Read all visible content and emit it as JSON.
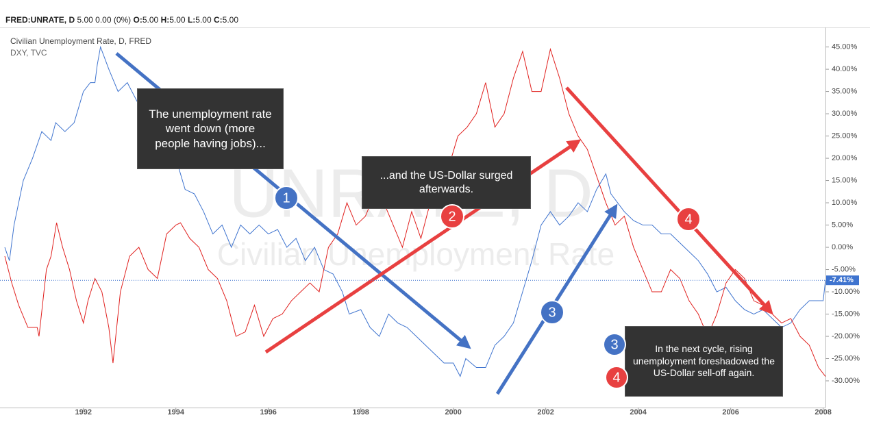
{
  "header": {
    "symbol": "FRED:UNRATE, D",
    "change": "5.00 0.00 (0%)",
    "ohlc": [
      {
        "key": "O:",
        "value": "5.00"
      },
      {
        "key": "H:",
        "value": "5.00"
      },
      {
        "key": "L:",
        "value": "5.00"
      },
      {
        "key": "C:",
        "value": "5.00"
      }
    ]
  },
  "chart_data": {
    "type": "line",
    "watermark": [
      "UNRATE, D",
      "Civilian Unemployment Rate"
    ],
    "xlim": [
      1990.3,
      2008.05
    ],
    "ylim": [
      -36,
      49.4
    ],
    "xticks": [
      1992,
      1994,
      1996,
      1998,
      2000,
      2002,
      2004,
      2006,
      2008
    ],
    "yticks": [
      {
        "value": 45,
        "label": "45.00%"
      },
      {
        "value": 40,
        "label": "40.00%"
      },
      {
        "value": 35,
        "label": "35.00%"
      },
      {
        "value": 30,
        "label": "30.00%"
      },
      {
        "value": 25,
        "label": "25.00%"
      },
      {
        "value": 20,
        "label": "20.00%"
      },
      {
        "value": 15,
        "label": "15.00%"
      },
      {
        "value": 10,
        "label": "10.00%"
      },
      {
        "value": 5,
        "label": "5.00%"
      },
      {
        "value": 0,
        "label": "0.00%"
      },
      {
        "value": -5,
        "label": "-5.00%"
      },
      {
        "value": -10,
        "label": "-10.00%"
      },
      {
        "value": -15,
        "label": "-15.00%"
      },
      {
        "value": -20,
        "label": "-20.00%"
      },
      {
        "value": -25,
        "label": "-25.00%"
      },
      {
        "value": -30,
        "label": "-30.00%"
      }
    ],
    "last_value": {
      "value": -7.41,
      "label": "-7.41%"
    },
    "series": [
      {
        "name": "Civilian Unemployment Rate, D, FRED",
        "color": "#3f74cf",
        "x": [
          1990.3,
          1990.4,
          1990.5,
          1990.7,
          1990.9,
          1991.1,
          1991.3,
          1991.4,
          1991.6,
          1991.8,
          1992.0,
          1992.15,
          1992.25,
          1992.3,
          1992.37,
          1992.55,
          1992.75,
          1992.95,
          1993.2,
          1993.4,
          1993.6,
          1993.8,
          1994.0,
          1994.2,
          1994.4,
          1994.6,
          1994.8,
          1995.0,
          1995.2,
          1995.4,
          1995.6,
          1995.8,
          1996.0,
          1996.2,
          1996.4,
          1996.6,
          1996.8,
          1997.0,
          1997.2,
          1997.4,
          1997.6,
          1997.75,
          1998.0,
          1998.2,
          1998.4,
          1998.6,
          1998.8,
          1999.0,
          1999.2,
          1999.4,
          1999.6,
          1999.8,
          2000.0,
          2000.15,
          2000.27,
          2000.5,
          2000.7,
          2000.9,
          2001.1,
          2001.3,
          2001.5,
          2001.7,
          2001.9,
          2002.1,
          2002.3,
          2002.5,
          2002.7,
          2002.9,
          2003.1,
          2003.3,
          2003.41,
          2003.7,
          2003.9,
          2004.1,
          2004.3,
          2004.5,
          2004.7,
          2004.9,
          2005.1,
          2005.3,
          2005.5,
          2005.7,
          2005.9,
          2006.1,
          2006.3,
          2006.5,
          2006.7,
          2006.9,
          2007.1,
          2007.3,
          2007.5,
          2007.7,
          2008.0,
          2008.05
        ],
        "values": [
          0,
          -3,
          5,
          15,
          20,
          26,
          24,
          28,
          26,
          28,
          35,
          37,
          37,
          41,
          45,
          40,
          35,
          37,
          32,
          30,
          25,
          22,
          20,
          13,
          12,
          8,
          3,
          5,
          0,
          5,
          3,
          5,
          3,
          4,
          0,
          2,
          -3,
          0,
          -5,
          -6,
          -10,
          -15,
          -14,
          -18,
          -20,
          -15,
          -17,
          -18,
          -20,
          -22,
          -24,
          -26,
          -26,
          -29,
          -25,
          -27,
          -27,
          -22,
          -20,
          -17,
          -10,
          -3,
          5,
          8,
          5,
          7,
          10,
          8,
          13,
          16.5,
          12,
          8,
          6,
          5,
          5,
          3,
          3,
          1,
          -1,
          -3,
          -6,
          -10,
          -9,
          -12,
          -14,
          -15,
          -14,
          -16,
          -18,
          -17,
          -14,
          -12,
          -12,
          -7.41
        ]
      },
      {
        "name": "DXY, TVC",
        "color": "#e0201e",
        "x": [
          1990.3,
          1990.45,
          1990.6,
          1990.8,
          1991.0,
          1991.04,
          1991.2,
          1991.3,
          1991.42,
          1991.55,
          1991.7,
          1991.85,
          1992.0,
          1992.1,
          1992.25,
          1992.4,
          1992.55,
          1992.64,
          1992.8,
          1993.0,
          1993.2,
          1993.4,
          1993.6,
          1993.8,
          1994.0,
          1994.1,
          1994.3,
          1994.5,
          1994.7,
          1994.9,
          1995.1,
          1995.3,
          1995.5,
          1995.7,
          1995.9,
          1996.1,
          1996.3,
          1996.5,
          1996.7,
          1996.9,
          1997.1,
          1997.3,
          1997.5,
          1997.7,
          1997.9,
          1998.1,
          1998.3,
          1998.5,
          1998.7,
          1998.9,
          1999.1,
          1999.3,
          1999.5,
          1999.7,
          1999.9,
          2000.1,
          2000.3,
          2000.5,
          2000.7,
          2000.9,
          2001.1,
          2001.3,
          2001.5,
          2001.7,
          2001.9,
          2002.1,
          2002.3,
          2002.5,
          2002.7,
          2002.9,
          2003.1,
          2003.3,
          2003.5,
          2003.7,
          2003.9,
          2004.1,
          2004.3,
          2004.5,
          2004.7,
          2004.9,
          2005.1,
          2005.3,
          2005.5,
          2005.7,
          2005.9,
          2006.1,
          2006.3,
          2006.5,
          2006.7,
          2006.9,
          2007.1,
          2007.3,
          2007.5,
          2007.7,
          2007.9,
          2008.05
        ],
        "values": [
          -2,
          -8,
          -13,
          -18,
          -18,
          -20,
          -5,
          -2,
          5.5,
          0,
          -5,
          -12,
          -17,
          -12,
          -7,
          -10,
          -18,
          -26,
          -10,
          -2,
          0,
          -5,
          -7,
          3,
          5,
          5.5,
          2,
          0,
          -5,
          -7,
          -12,
          -20,
          -19,
          -13,
          -20,
          -16,
          -15,
          -12,
          -10,
          -8,
          -10,
          0,
          3,
          10,
          5,
          7,
          12,
          10,
          5,
          0,
          8,
          2,
          10,
          15,
          18,
          25,
          27,
          30,
          37,
          27,
          30,
          38,
          44,
          35,
          35,
          44.5,
          38,
          30,
          25,
          22,
          16,
          10,
          5,
          7,
          0,
          -5,
          -10,
          -10,
          -5,
          -7,
          -12,
          -15,
          -20,
          -15,
          -8,
          -5,
          -7,
          -12,
          -13,
          -15,
          -17,
          -16,
          -20,
          -22,
          -27,
          -29
        ]
      }
    ],
    "annotations": [
      "The unemployment rate went down (more people having jobs)...",
      "...and the US-Dollar surged afterwards.",
      "In the next cycle, rising unemployment foreshadowed the US-Dollar sell-off again."
    ],
    "markers": [
      "1",
      "2",
      "3",
      "4",
      "3",
      "4"
    ]
  }
}
